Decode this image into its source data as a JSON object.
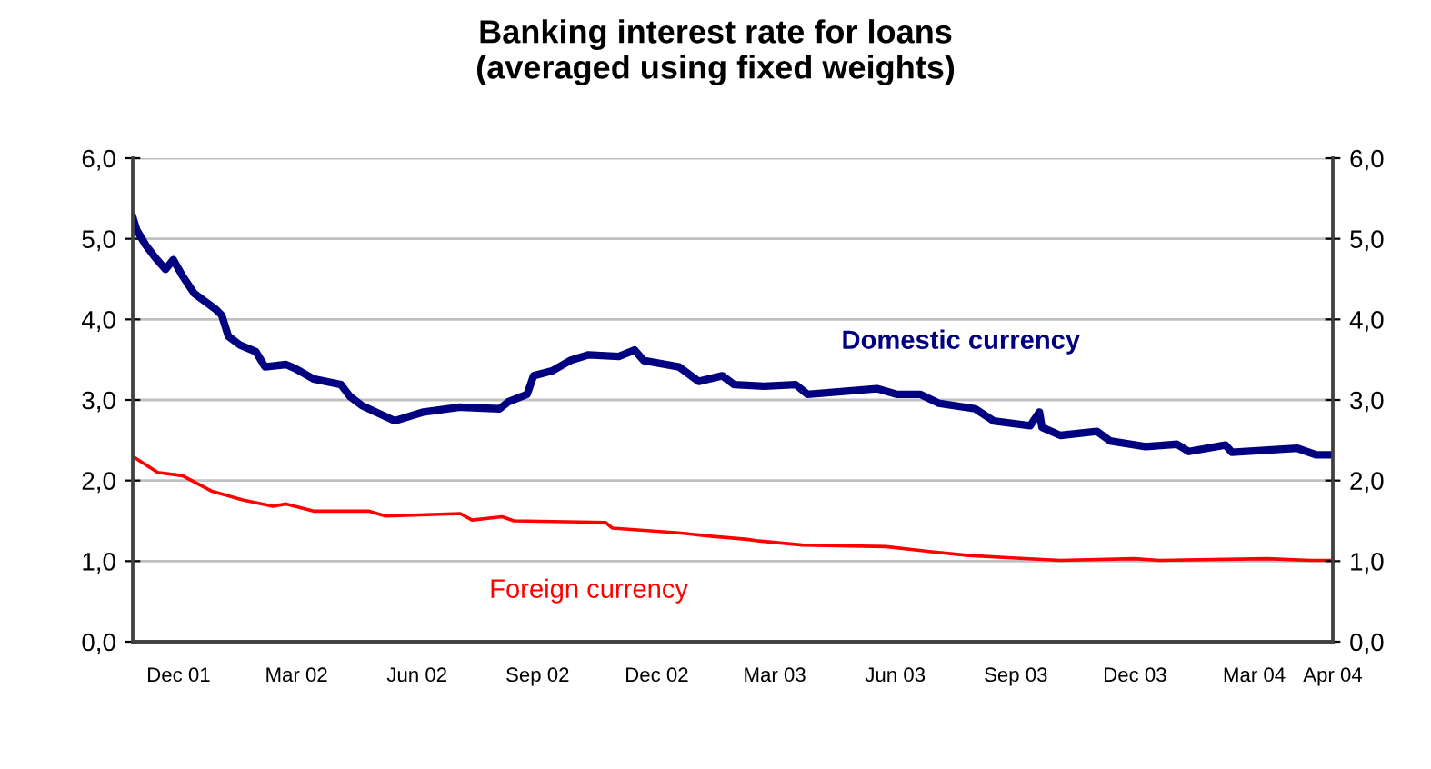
{
  "chart_data": {
    "type": "line",
    "title": "Banking interest rate for loans\n(averaged using fixed weights)",
    "xlim": [
      "2001-10-27",
      "2004-04-30"
    ],
    "xticks": [
      {
        "value": "2001-12-01",
        "label": "Dec 01"
      },
      {
        "value": "2002-03-01",
        "label": "Mar 02"
      },
      {
        "value": "2002-06-01",
        "label": "Jun 02"
      },
      {
        "value": "2002-09-01",
        "label": "Sep 02"
      },
      {
        "value": "2002-12-01",
        "label": "Dec 02"
      },
      {
        "value": "2003-03-01",
        "label": "Mar 03"
      },
      {
        "value": "2003-06-01",
        "label": "Jun 03"
      },
      {
        "value": "2003-09-01",
        "label": "Sep 03"
      },
      {
        "value": "2003-12-01",
        "label": "Dec 03"
      },
      {
        "value": "2004-03-01",
        "label": "Mar 04"
      },
      {
        "value": "2004-04-30",
        "label": "Apr 04"
      }
    ],
    "ylim": [
      0,
      6
    ],
    "yticks": [
      {
        "value": 0,
        "label": "0,0"
      },
      {
        "value": 1,
        "label": "1,0"
      },
      {
        "value": 2,
        "label": "2,0"
      },
      {
        "value": 3,
        "label": "3,0"
      },
      {
        "value": 4,
        "label": "4,0"
      },
      {
        "value": 5,
        "label": "5,0"
      },
      {
        "value": 6,
        "label": "6,0"
      }
    ],
    "y2lim": [
      0,
      6
    ],
    "y2ticks": [
      {
        "value": 0,
        "label": "0,0"
      },
      {
        "value": 1,
        "label": "1,0"
      },
      {
        "value": 2,
        "label": "2,0"
      },
      {
        "value": 3,
        "label": "3,0"
      },
      {
        "value": 4,
        "label": "4,0"
      },
      {
        "value": 5,
        "label": "5,0"
      },
      {
        "value": 6,
        "label": "6,0"
      }
    ],
    "grid": "y",
    "legend": false,
    "series": [
      {
        "name": "Domestic currency",
        "color": "#000080",
        "x": [
          "2001-10-27",
          "2001-10-30",
          "2001-11-06",
          "2001-11-13",
          "2001-11-21",
          "2001-11-27",
          "2001-12-04",
          "2001-12-13",
          "2001-12-29",
          "2002-01-03",
          "2002-01-08",
          "2002-01-17",
          "2002-01-29",
          "2002-02-05",
          "2002-02-21",
          "2002-02-28",
          "2002-03-14",
          "2002-04-04",
          "2002-04-11",
          "2002-04-20",
          "2002-05-15",
          "2002-06-06",
          "2002-07-04",
          "2002-08-03",
          "2002-08-10",
          "2002-08-24",
          "2002-08-29",
          "2002-09-12",
          "2002-09-26",
          "2002-10-10",
          "2002-11-02",
          "2002-11-14",
          "2002-11-21",
          "2002-12-18",
          "2003-01-02",
          "2003-01-20",
          "2003-01-29",
          "2003-02-21",
          "2003-03-17",
          "2003-03-26",
          "2003-05-18",
          "2003-06-02",
          "2003-06-20",
          "2003-07-04",
          "2003-08-01",
          "2003-08-15",
          "2003-09-12",
          "2003-09-19",
          "2003-09-21",
          "2003-10-05",
          "2003-11-02",
          "2003-11-12",
          "2003-12-09",
          "2004-01-02",
          "2004-01-11",
          "2004-02-08",
          "2004-02-13",
          "2004-04-03",
          "2004-04-17",
          "2004-04-28"
        ],
        "values": [
          5.27,
          5.11,
          4.92,
          4.77,
          4.62,
          4.74,
          4.54,
          4.32,
          4.13,
          4.05,
          3.79,
          3.68,
          3.6,
          3.41,
          3.44,
          3.39,
          3.26,
          3.19,
          3.04,
          2.93,
          2.74,
          2.85,
          2.91,
          2.89,
          2.98,
          3.07,
          3.3,
          3.36,
          3.49,
          3.56,
          3.54,
          3.62,
          3.49,
          3.41,
          3.23,
          3.3,
          3.19,
          3.17,
          3.19,
          3.07,
          3.14,
          3.07,
          3.07,
          2.96,
          2.89,
          2.74,
          2.68,
          2.85,
          2.66,
          2.56,
          2.61,
          2.49,
          2.42,
          2.45,
          2.36,
          2.44,
          2.35,
          2.4,
          2.32,
          2.32
        ]
      },
      {
        "name": "Foreign currency",
        "color": "#ff0000",
        "x": [
          "2001-10-28",
          "2001-11-15",
          "2001-12-04",
          "2001-12-26",
          "2002-01-19",
          "2002-02-11",
          "2002-02-21",
          "2002-03-14",
          "2002-04-25",
          "2002-05-08",
          "2002-07-04",
          "2002-07-13",
          "2002-08-05",
          "2002-08-14",
          "2002-10-23",
          "2002-10-28",
          "2002-12-18",
          "2003-01-11",
          "2003-01-25",
          "2003-02-08",
          "2003-02-17",
          "2003-03-22",
          "2003-05-25",
          "2003-06-27",
          "2003-07-27",
          "2003-08-29",
          "2003-10-05",
          "2003-11-30",
          "2003-12-19",
          "2004-03-11",
          "2004-04-13",
          "2004-04-30"
        ],
        "values": [
          2.29,
          2.1,
          2.06,
          1.87,
          1.76,
          1.68,
          1.71,
          1.62,
          1.62,
          1.56,
          1.59,
          1.51,
          1.55,
          1.5,
          1.48,
          1.41,
          1.35,
          1.31,
          1.29,
          1.27,
          1.25,
          1.2,
          1.18,
          1.12,
          1.07,
          1.04,
          1.01,
          1.03,
          1.01,
          1.03,
          1.01,
          1.01
        ]
      }
    ]
  }
}
